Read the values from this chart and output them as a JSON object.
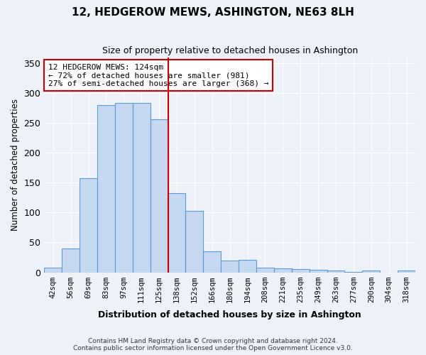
{
  "title": "12, HEDGEROW MEWS, ASHINGTON, NE63 8LH",
  "subtitle": "Size of property relative to detached houses in Ashington",
  "xlabel": "Distribution of detached houses by size in Ashington",
  "ylabel": "Number of detached properties",
  "categories": [
    "42sqm",
    "56sqm",
    "69sqm",
    "83sqm",
    "97sqm",
    "111sqm",
    "125sqm",
    "138sqm",
    "152sqm",
    "166sqm",
    "180sqm",
    "194sqm",
    "208sqm",
    "221sqm",
    "235sqm",
    "249sqm",
    "263sqm",
    "277sqm",
    "290sqm",
    "304sqm",
    "318sqm"
  ],
  "values": [
    8,
    40,
    157,
    280,
    283,
    283,
    256,
    133,
    103,
    35,
    20,
    21,
    8,
    7,
    5,
    4,
    3,
    1,
    3,
    0,
    3
  ],
  "bar_color": "#c5d8f0",
  "bar_edge_color": "#5b9bd5",
  "vline_x": 6.5,
  "vline_color": "#cc0000",
  "annotation_text": "12 HEDGEROW MEWS: 124sqm\n← 72% of detached houses are smaller (981)\n27% of semi-detached houses are larger (368) →",
  "annotation_box_color": "#ffffff",
  "annotation_box_edge": "#cc0000",
  "ylim": [
    0,
    360
  ],
  "yticks": [
    0,
    50,
    100,
    150,
    200,
    250,
    300,
    350
  ],
  "footer1": "Contains HM Land Registry data © Crown copyright and database right 2024.",
  "footer2": "Contains public sector information licensed under the Open Government Licence v3.0.",
  "bg_color": "#eef2f8",
  "plot_bg_color": "#eef2f8"
}
